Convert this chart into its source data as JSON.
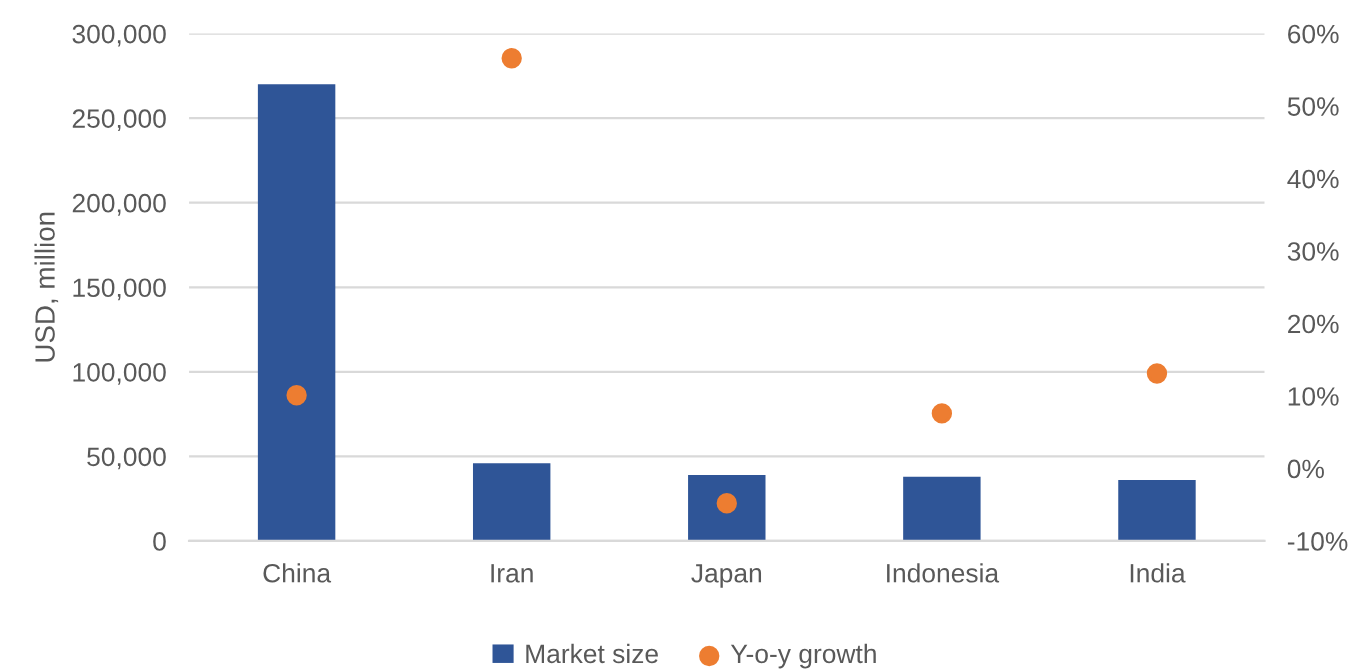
{
  "chart_data": {
    "type": "bar",
    "ylabel": "USD, million",
    "categories": [
      "China",
      "Iran",
      "Japan",
      "Indonesia",
      "India"
    ],
    "series": [
      {
        "name": "Market size",
        "color": "#2f5597",
        "values": [
          270000,
          46000,
          39000,
          38000,
          36000
        ]
      },
      {
        "name": "Y-o-y growth",
        "type": "scatter",
        "axis": "y2",
        "color": "#ed7d31",
        "marker": "circle",
        "values": [
          10.1,
          56.6,
          -4.8,
          7.6,
          13.1
        ]
      }
    ],
    "ylim": [
      0,
      300000
    ],
    "yticks": [
      {
        "value": 0,
        "label": "0"
      },
      {
        "value": 50000,
        "label": "50,000"
      },
      {
        "value": 100000,
        "label": "100,000"
      },
      {
        "value": 150000,
        "label": "150,000"
      },
      {
        "value": 200000,
        "label": "200,000"
      },
      {
        "value": 250000,
        "label": "250,000"
      },
      {
        "value": 300000,
        "label": "300,000"
      }
    ],
    "y2lim": [
      -10,
      60
    ],
    "y2ticks": [
      {
        "value": -10,
        "label": "-10%"
      },
      {
        "value": 0,
        "label": "0%"
      },
      {
        "value": 10,
        "label": "10%"
      },
      {
        "value": 20,
        "label": "20%"
      },
      {
        "value": 30,
        "label": "30%"
      },
      {
        "value": 40,
        "label": "40%"
      },
      {
        "value": 50,
        "label": "50%"
      },
      {
        "value": 60,
        "label": "60%"
      }
    ],
    "grid": "y",
    "legend": "bottom"
  }
}
